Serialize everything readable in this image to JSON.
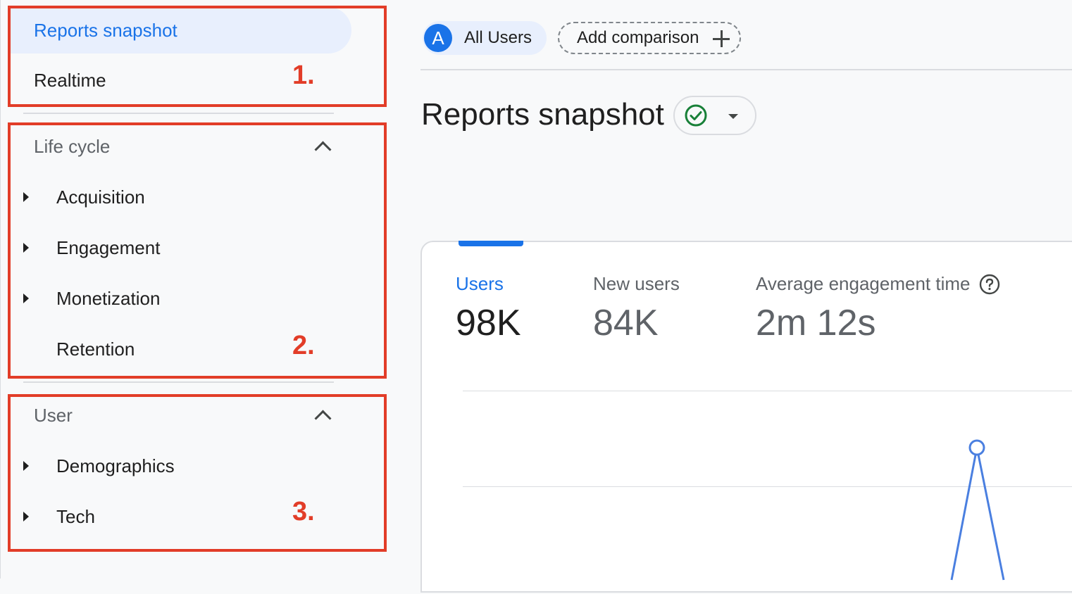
{
  "sidebar": {
    "top_items": [
      {
        "label": "Reports snapshot",
        "active": true
      },
      {
        "label": "Realtime",
        "active": false
      }
    ],
    "sections": [
      {
        "title": "Life cycle",
        "expanded": true,
        "items": [
          {
            "label": "Acquisition",
            "has_caret": true
          },
          {
            "label": "Engagement",
            "has_caret": true
          },
          {
            "label": "Monetization",
            "has_caret": true
          },
          {
            "label": "Retention",
            "has_caret": false
          }
        ]
      },
      {
        "title": "User",
        "expanded": true,
        "items": [
          {
            "label": "Demographics",
            "has_caret": true
          },
          {
            "label": "Tech",
            "has_caret": true
          }
        ]
      }
    ]
  },
  "annotations": [
    "1.",
    "2.",
    "3."
  ],
  "toolbar": {
    "segment": {
      "avatar_letter": "A",
      "label": "All Users"
    },
    "add_comparison_label": "Add comparison"
  },
  "page": {
    "title": "Reports snapshot",
    "status_icon": "check-circle-icon"
  },
  "metrics": [
    {
      "label": "Users",
      "value": "98K",
      "selected": true
    },
    {
      "label": "New users",
      "value": "84K",
      "selected": false
    },
    {
      "label": "Average engagement time",
      "value": "2m 12s",
      "selected": false,
      "has_help": true
    }
  ],
  "colors": {
    "accent": "#1a73e8",
    "annotation": "#e23d28",
    "success": "#188038"
  }
}
